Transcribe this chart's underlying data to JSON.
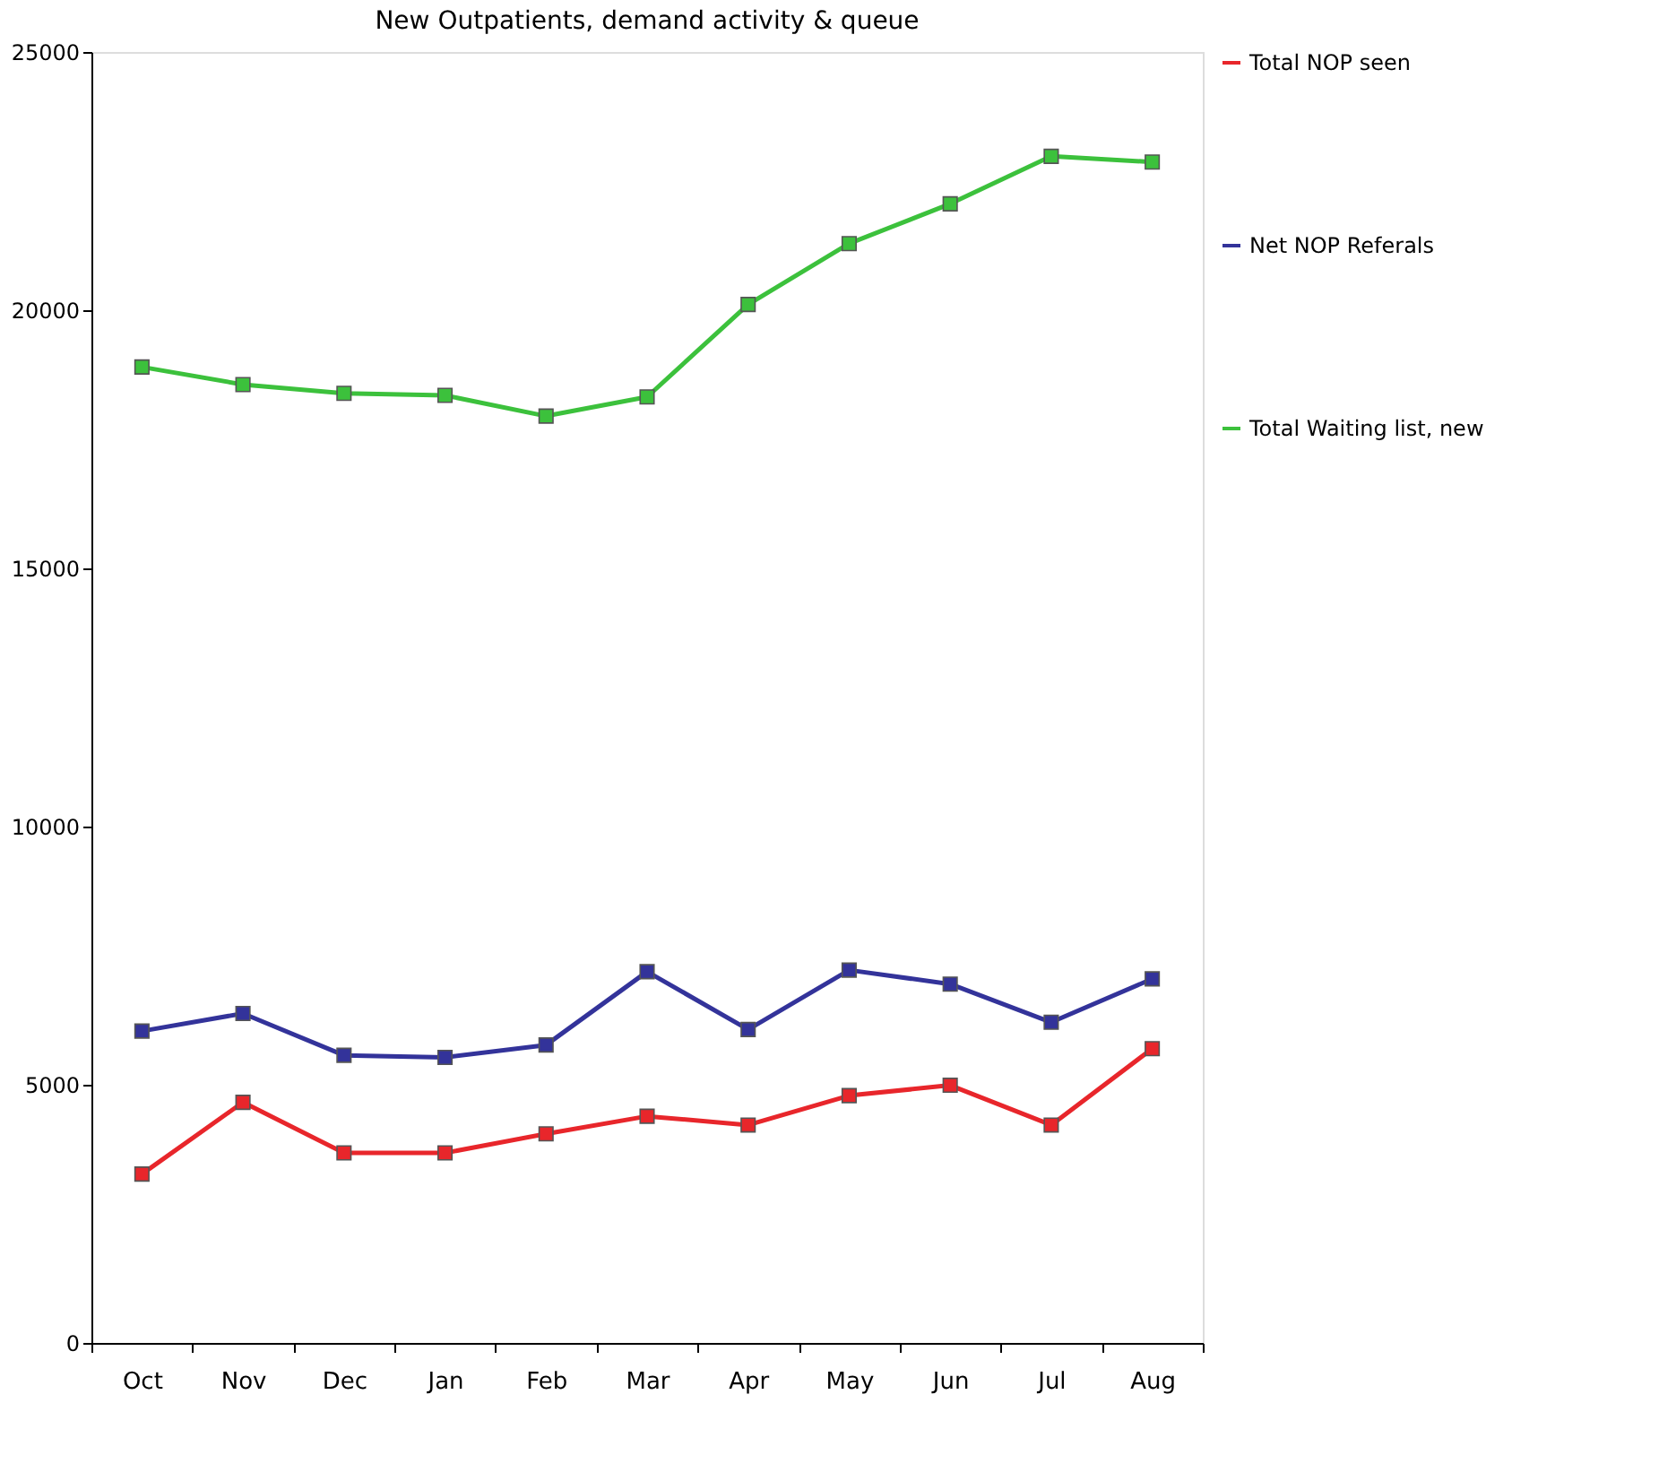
{
  "chart_data": {
    "type": "line",
    "title": "New Outpatients, demand activity & queue",
    "categories": [
      "Oct",
      "Nov",
      "Dec",
      "Jan",
      "Feb",
      "Mar",
      "Apr",
      "May",
      "Jun",
      "Jul",
      "Aug"
    ],
    "series": [
      {
        "name": "Total NOP seen",
        "color": "#e8262b",
        "values": [
          3270,
          4660,
          3680,
          3680,
          4050,
          4390,
          4220,
          4790,
          4990,
          4220,
          5700
        ]
      },
      {
        "name": "Net NOP Referals",
        "color": "#33339a",
        "values": [
          6040,
          6380,
          5570,
          5530,
          5770,
          7190,
          6070,
          7220,
          6950,
          6210,
          7050
        ]
      },
      {
        "name": "Total Waiting list, new",
        "color": "#3cc13c",
        "values": [
          18900,
          18560,
          18390,
          18350,
          17950,
          18320,
          20110,
          21290,
          22060,
          22980,
          22870
        ]
      }
    ],
    "ylim": [
      0,
      25000
    ],
    "yticks": [
      0,
      5000,
      10000,
      15000,
      20000,
      25000
    ],
    "grid": false,
    "legend": "right",
    "marker": "square",
    "line_style": "solid"
  }
}
